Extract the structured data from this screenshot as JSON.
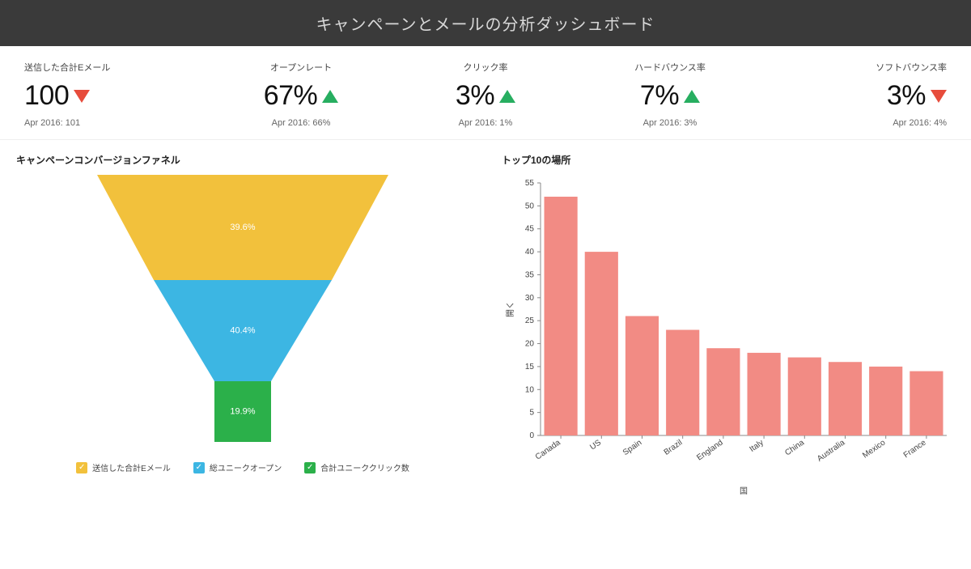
{
  "header": {
    "title": "キャンペーンとメールの分析ダッシュボード"
  },
  "kpis": [
    {
      "label": "送信した合計Eメール",
      "value": "100",
      "trend": "down",
      "compare": "Apr 2016: 101"
    },
    {
      "label": "オープンレート",
      "value": "67%",
      "trend": "up",
      "compare": "Apr 2016: 66%"
    },
    {
      "label": "クリック率",
      "value": "3%",
      "trend": "up",
      "compare": "Apr 2016: 1%"
    },
    {
      "label": "ハードバウンス率",
      "value": "7%",
      "trend": "up",
      "compare": "Apr 2016: 3%"
    },
    {
      "label": "ソフトバウンス率",
      "value": "3%",
      "trend": "down",
      "compare": "Apr 2016: 4%"
    }
  ],
  "trend_colors": {
    "up": "#27ae60",
    "down": "#e74c3c"
  },
  "funnel": {
    "title": "キャンペーンコンバージョンファネル",
    "type": "funnel",
    "stages": [
      {
        "label": "39.6%",
        "color": "#f2c13c"
      },
      {
        "label": "40.4%",
        "color": "#3cb6e3"
      },
      {
        "label": "19.9%",
        "color": "#2bb04a"
      }
    ],
    "legend": [
      {
        "swatch": "#f2c13c",
        "label": "送信した合計Eメール"
      },
      {
        "swatch": "#3cb6e3",
        "label": "総ユニークオープン"
      },
      {
        "swatch": "#2bb04a",
        "label": "合計ユニーククリック数"
      }
    ],
    "check_glyph": "✓"
  },
  "barchart": {
    "title": "トップ10の場所",
    "type": "bar",
    "x_label": "国",
    "y_label": "開く",
    "bar_color": "#f28b84",
    "background_color": "#ffffff",
    "grid_color": "#e0e0e0",
    "axis_color": "#888888",
    "axis_fontsize": 10,
    "ylim": [
      0,
      55
    ],
    "ytick_step": 5,
    "categories": [
      "Canada",
      "US",
      "Spain",
      "Brazil",
      "England",
      "Italy",
      "China",
      "Australia",
      "Mexico",
      "France"
    ],
    "values": [
      52,
      40,
      26,
      23,
      19,
      18,
      17,
      16,
      15,
      14
    ],
    "bar_width": 0.82
  }
}
